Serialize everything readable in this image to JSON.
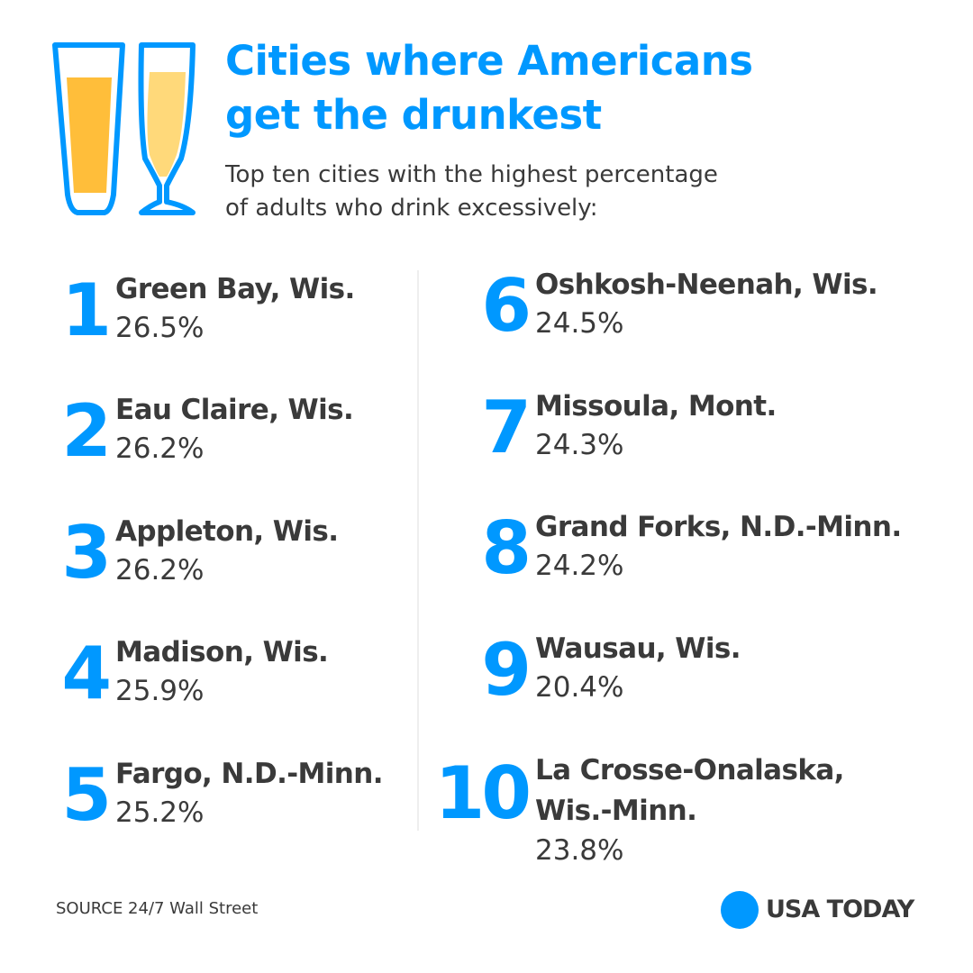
{
  "header": {
    "title_line1": "Cities where Americans",
    "title_line2": "get the drunkest",
    "subtitle_line1": "Top ten cities with the highest percentage",
    "subtitle_line2": "of adults who drink excessively:"
  },
  "icons": {
    "glasses": "beer-glasses-icon",
    "brand": "usa-today-circle-icon"
  },
  "colors": {
    "accent": "#0098ff",
    "text": "#3a3a3a",
    "beer_dark": "#ffbe3a",
    "beer_light": "#ffd97a"
  },
  "rankings": {
    "left": [
      {
        "rank": "1",
        "city": "Green Bay, Wis.",
        "percent": "26.5%"
      },
      {
        "rank": "2",
        "city": "Eau Claire, Wis.",
        "percent": "26.2%"
      },
      {
        "rank": "3",
        "city": "Appleton, Wis.",
        "percent": "26.2%"
      },
      {
        "rank": "4",
        "city": "Madison, Wis.",
        "percent": "25.9%"
      },
      {
        "rank": "5",
        "city": "Fargo, N.D.-Minn.",
        "percent": "25.2%"
      }
    ],
    "right": [
      {
        "rank": "6",
        "city": "Oshkosh-Neenah, Wis.",
        "percent": "24.5%"
      },
      {
        "rank": "7",
        "city": "Missoula, Mont.",
        "percent": "24.3%"
      },
      {
        "rank": "8",
        "city": "Grand Forks, N.D.-Minn.",
        "percent": "24.2%"
      },
      {
        "rank": "9",
        "city": "Wausau, Wis.",
        "percent": "20.4%"
      },
      {
        "rank": "10",
        "city": "La Crosse-Onalaska,",
        "city_line2": "Wis.-Minn.",
        "percent": "23.8%"
      }
    ]
  },
  "footer": {
    "source": "SOURCE 24/7 Wall Street",
    "brand": "USA TODAY"
  }
}
